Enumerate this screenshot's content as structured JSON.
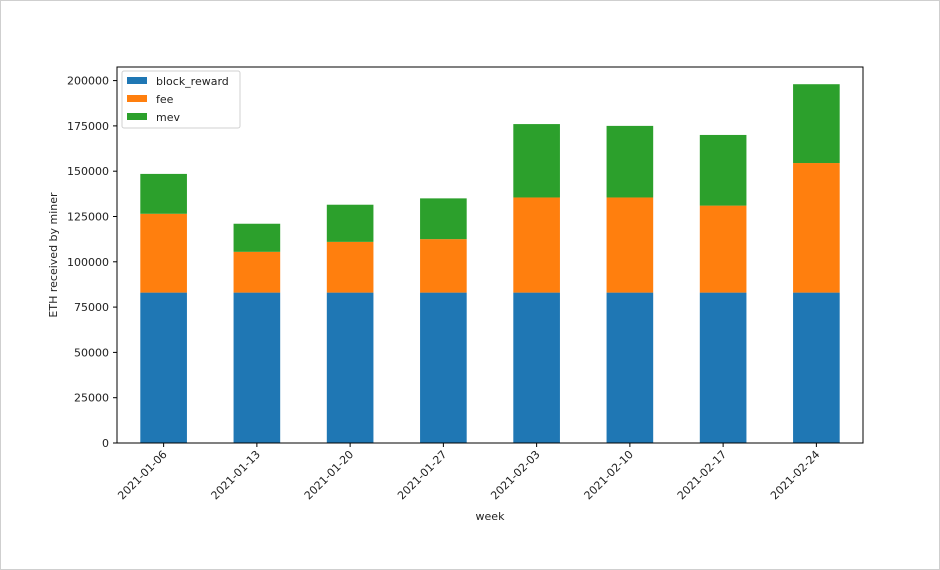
{
  "chart_data": {
    "type": "bar",
    "stacked": true,
    "categories": [
      "2021-01-06",
      "2021-01-13",
      "2021-01-20",
      "2021-01-27",
      "2021-02-03",
      "2021-02-10",
      "2021-02-17",
      "2021-02-24"
    ],
    "series": [
      {
        "name": "block_reward",
        "color": "#1f77b4",
        "values": [
          83000,
          83000,
          83000,
          83000,
          83000,
          83000,
          83000,
          83000
        ]
      },
      {
        "name": "fee",
        "color": "#ff7f0e",
        "values": [
          43500,
          22500,
          28000,
          29500,
          52500,
          52500,
          48000,
          71500
        ]
      },
      {
        "name": "mev",
        "color": "#2ca02c",
        "values": [
          22000,
          15500,
          20500,
          22500,
          40500,
          39500,
          39000,
          43500
        ]
      }
    ],
    "xlabel": "week",
    "ylabel": "ETH received by miner",
    "ylim": [
      0,
      207500
    ],
    "yticks": [
      0,
      25000,
      50000,
      75000,
      100000,
      125000,
      150000,
      175000,
      200000
    ],
    "legend_position": "top-left",
    "grid": false
  }
}
